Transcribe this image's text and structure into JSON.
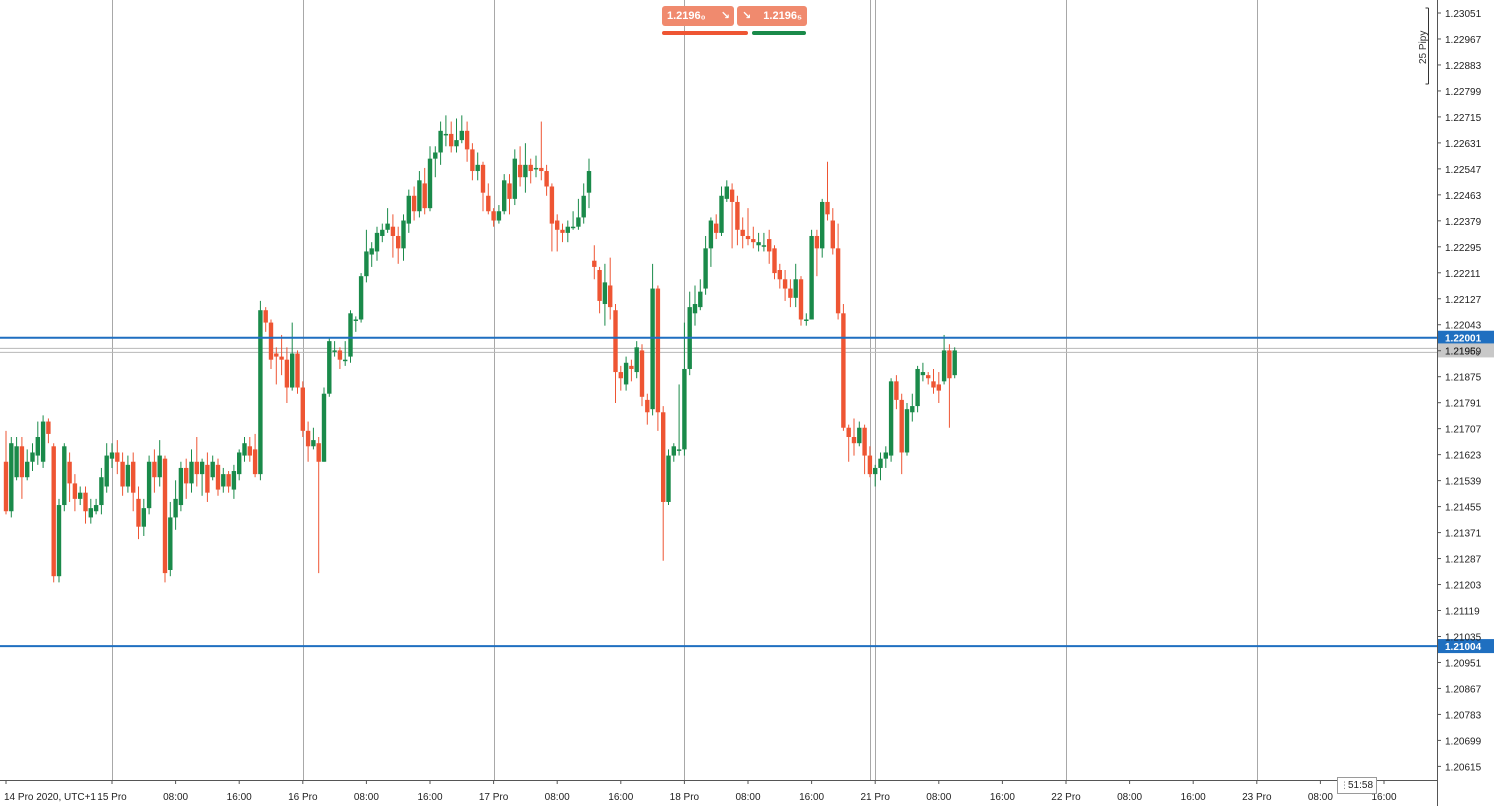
{
  "trade_panel": {
    "sell_price": "1.2196₀",
    "buy_price": "1.2196₅",
    "sell_arrow": "↘",
    "buy_arrow": "↘",
    "sell_color": "#ee5533",
    "buy_color": "#1a8a4a"
  },
  "timer": {
    "text": "51:58"
  },
  "scale_ruler": {
    "label": "25 Pipy"
  },
  "colors": {
    "bull": "#1a8a4a",
    "bear": "#ee5533",
    "hline": "#1f6fc0",
    "grid": "#a8a8a8"
  },
  "chart_data": {
    "type": "candlestick",
    "y_range": [
      1.20571,
      1.23093
    ],
    "y_ticks": [
      "1.23051",
      "1.22967",
      "1.22883",
      "1.22799",
      "1.22715",
      "1.22631",
      "1.22547",
      "1.22463",
      "1.22379",
      "1.22295",
      "1.22211",
      "1.22127",
      "1.22043",
      "1.21959",
      "1.21875",
      "1.21791",
      "1.21707",
      "1.21623",
      "1.21539",
      "1.21455",
      "1.21371",
      "1.21287",
      "1.21203",
      "1.21119",
      "1.21035",
      "1.20951",
      "1.20867",
      "1.20783",
      "1.20699",
      "1.20615"
    ],
    "x_labels": [
      {
        "label": "14 Pro 2020, UTC+1",
        "t": 0
      },
      {
        "label": "15 Pro",
        "t": 20
      },
      {
        "label": "08:00",
        "t": 32
      },
      {
        "label": "16:00",
        "t": 44
      },
      {
        "label": "16 Pro",
        "t": 56
      },
      {
        "label": "08:00",
        "t": 68
      },
      {
        "label": "16:00",
        "t": 80
      },
      {
        "label": "17 Pro",
        "t": 92
      },
      {
        "label": "08:00",
        "t": 104
      },
      {
        "label": "16:00",
        "t": 116
      },
      {
        "label": "18 Pro",
        "t": 128
      },
      {
        "label": "08:00",
        "t": 140
      },
      {
        "label": "16:00",
        "t": 152
      },
      {
        "label": "21 Pro",
        "t": 164
      },
      {
        "label": "08:00",
        "t": 176
      },
      {
        "label": "16:00",
        "t": 188
      },
      {
        "label": "22 Pro",
        "t": 200
      },
      {
        "label": "08:00",
        "t": 212
      },
      {
        "label": "16:00",
        "t": 224
      },
      {
        "label": "23 Pro",
        "t": 236
      },
      {
        "label": "08:00",
        "t": 248
      },
      {
        "label": "16:00",
        "t": 260
      }
    ],
    "separators": [
      20,
      56,
      92,
      128,
      163,
      164,
      200,
      236
    ],
    "horizontal_lines": [
      {
        "price": 1.22001,
        "label": "1.22001"
      },
      {
        "price": 1.21004,
        "label": "1.21004"
      }
    ],
    "current_price": {
      "price": 1.2196,
      "label": "1.2196₀"
    },
    "candles": [
      [
        1.216,
        1.2144,
        1.217,
        1.2143
      ],
      [
        1.2144,
        1.2166,
        1.2168,
        1.2142
      ],
      [
        1.2155,
        1.2165,
        1.2168,
        1.2154
      ],
      [
        1.2165,
        1.2155,
        1.2168,
        1.2148
      ],
      [
        1.2155,
        1.216,
        1.2164,
        1.2154
      ],
      [
        1.216,
        1.2163,
        1.2166,
        1.2157
      ],
      [
        1.2162,
        1.2168,
        1.2173,
        1.2159
      ],
      [
        1.216,
        1.2173,
        1.2175,
        1.2158
      ],
      [
        1.2173,
        1.2169,
        1.2174,
        1.2166
      ],
      [
        1.2165,
        1.2123,
        1.2166,
        1.2121
      ],
      [
        1.2123,
        1.2146,
        1.2148,
        1.2121
      ],
      [
        1.2146,
        1.2165,
        1.2166,
        1.2144
      ],
      [
        1.216,
        1.2153,
        1.2163,
        1.2147
      ],
      [
        1.2153,
        1.2148,
        1.2156,
        1.2144
      ],
      [
        1.2148,
        1.215,
        1.2152,
        1.2146
      ],
      [
        1.215,
        1.2144,
        1.2152,
        1.214
      ],
      [
        1.2142,
        1.2145,
        1.2148,
        1.214
      ],
      [
        1.2144,
        1.2146,
        1.2148,
        1.2143
      ],
      [
        1.2146,
        1.2155,
        1.2158,
        1.2143
      ],
      [
        1.2152,
        1.2162,
        1.2166,
        1.215
      ],
      [
        1.2161,
        1.2163,
        1.2166,
        1.2158
      ],
      [
        1.2163,
        1.216,
        1.2167,
        1.2156
      ],
      [
        1.216,
        1.2152,
        1.2163,
        1.2149
      ],
      [
        1.2152,
        1.2159,
        1.2162,
        1.215
      ],
      [
        1.216,
        1.215,
        1.2163,
        1.2144
      ],
      [
        1.2148,
        1.2139,
        1.2152,
        1.2135
      ],
      [
        1.2139,
        1.2145,
        1.2148,
        1.2136
      ],
      [
        1.2145,
        1.216,
        1.2162,
        1.2143
      ],
      [
        1.216,
        1.2155,
        1.2164,
        1.215
      ],
      [
        1.2155,
        1.2162,
        1.2167,
        1.2152
      ],
      [
        1.2161,
        1.2124,
        1.2162,
        1.2121
      ],
      [
        1.2125,
        1.2142,
        1.2147,
        1.2123
      ],
      [
        1.2142,
        1.2148,
        1.2154,
        1.2138
      ],
      [
        1.2146,
        1.2158,
        1.216,
        1.2144
      ],
      [
        1.2158,
        1.2153,
        1.2161,
        1.2148
      ],
      [
        1.2153,
        1.216,
        1.2164,
        1.215
      ],
      [
        1.216,
        1.2156,
        1.2168,
        1.2152
      ],
      [
        1.2156,
        1.216,
        1.2161,
        1.2149
      ],
      [
        1.2159,
        1.215,
        1.2163,
        1.2147
      ],
      [
        1.2155,
        1.216,
        1.2162,
        1.2154
      ],
      [
        1.2159,
        1.2151,
        1.2161,
        1.2149
      ],
      [
        1.2152,
        1.2156,
        1.2158,
        1.215
      ],
      [
        1.2156,
        1.2152,
        1.2157,
        1.215
      ],
      [
        1.2151,
        1.2157,
        1.2159,
        1.2148
      ],
      [
        1.2156,
        1.2163,
        1.2164,
        1.2154
      ],
      [
        1.2162,
        1.2166,
        1.2168,
        1.216
      ],
      [
        1.2165,
        1.2162,
        1.2168,
        1.216
      ],
      [
        1.2164,
        1.2156,
        1.2169,
        1.2155
      ],
      [
        1.2156,
        1.2209,
        1.2212,
        1.2154
      ],
      [
        1.2209,
        1.2205,
        1.221,
        1.2202
      ],
      [
        1.2205,
        1.2193,
        1.2206,
        1.219
      ],
      [
        1.2195,
        1.2194,
        1.2197,
        1.2185
      ],
      [
        1.2194,
        1.2193,
        1.2201,
        1.2188
      ],
      [
        1.2193,
        1.2184,
        1.2197,
        1.2179
      ],
      [
        1.2184,
        1.2195,
        1.2205,
        1.2183
      ],
      [
        1.2195,
        1.2184,
        1.2196,
        1.2182
      ],
      [
        1.2184,
        1.217,
        1.2186,
        1.2168
      ],
      [
        1.217,
        1.2165,
        1.2173,
        1.216
      ],
      [
        1.2165,
        1.2167,
        1.2171,
        1.2164
      ],
      [
        1.2166,
        1.216,
        1.2168,
        1.2124
      ],
      [
        1.216,
        1.2182,
        1.2184,
        1.216
      ],
      [
        1.2182,
        1.2199,
        1.22,
        1.2181
      ],
      [
        1.2196,
        1.2196,
        1.2199,
        1.2194
      ],
      [
        1.2196,
        1.2193,
        1.2197,
        1.219
      ],
      [
        1.2193,
        1.2193,
        1.2199,
        1.2191
      ],
      [
        1.2194,
        1.2208,
        1.2209,
        1.2192
      ],
      [
        1.2206,
        1.2206,
        1.2207,
        1.2202
      ],
      [
        1.2206,
        1.222,
        1.2221,
        1.2205
      ],
      [
        1.222,
        1.2228,
        1.2235,
        1.2218
      ],
      [
        1.2227,
        1.2229,
        1.2231,
        1.2223
      ],
      [
        1.2228,
        1.2234,
        1.2236,
        1.2225
      ],
      [
        1.2233,
        1.2235,
        1.2237,
        1.2231
      ],
      [
        1.2235,
        1.2237,
        1.2242,
        1.2234
      ],
      [
        1.2236,
        1.2233,
        1.224,
        1.2226
      ],
      [
        1.2233,
        1.2229,
        1.2236,
        1.2224
      ],
      [
        1.2229,
        1.2238,
        1.224,
        1.2225
      ],
      [
        1.2237,
        1.2246,
        1.2248,
        1.2234
      ],
      [
        1.2246,
        1.2241,
        1.2249,
        1.2238
      ],
      [
        1.2241,
        1.2251,
        1.2254,
        1.2239
      ],
      [
        1.225,
        1.2242,
        1.2255,
        1.224
      ],
      [
        1.2242,
        1.2258,
        1.2262,
        1.2241
      ],
      [
        1.2258,
        1.226,
        1.2262,
        1.2252
      ],
      [
        1.226,
        1.2267,
        1.227,
        1.2256
      ],
      [
        1.2266,
        1.2266,
        1.2272,
        1.2262
      ],
      [
        1.2266,
        1.2262,
        1.227,
        1.226
      ],
      [
        1.2262,
        1.2264,
        1.2271,
        1.226
      ],
      [
        1.2264,
        1.2267,
        1.2272,
        1.2263
      ],
      [
        1.2267,
        1.2261,
        1.227,
        1.2257
      ],
      [
        1.2261,
        1.2254,
        1.2263,
        1.2251
      ],
      [
        1.2254,
        1.2256,
        1.226,
        1.2251
      ],
      [
        1.2256,
        1.2247,
        1.2257,
        1.2241
      ],
      [
        1.2246,
        1.2241,
        1.225,
        1.224
      ],
      [
        1.2241,
        1.2238,
        1.2242,
        1.2236
      ],
      [
        1.2238,
        1.2241,
        1.2243,
        1.2237
      ],
      [
        1.2241,
        1.2251,
        1.2253,
        1.224
      ],
      [
        1.225,
        1.2245,
        1.2253,
        1.224
      ],
      [
        1.2245,
        1.2258,
        1.2261,
        1.2243
      ],
      [
        1.2256,
        1.2252,
        1.2262,
        1.2249
      ],
      [
        1.2252,
        1.2256,
        1.2263,
        1.2247
      ],
      [
        1.2256,
        1.2254,
        1.2258,
        1.225
      ],
      [
        1.2255,
        1.2255,
        1.2259,
        1.2252
      ],
      [
        1.2255,
        1.2254,
        1.227,
        1.2251
      ],
      [
        1.2254,
        1.2249,
        1.2256,
        1.2246
      ],
      [
        1.2249,
        1.2237,
        1.225,
        1.2228
      ],
      [
        1.2238,
        1.2235,
        1.224,
        1.2228
      ],
      [
        1.2235,
        1.2234,
        1.2237,
        1.2231
      ],
      [
        1.2234,
        1.2236,
        1.2238,
        1.2231
      ],
      [
        1.2236,
        1.2236,
        1.2241,
        1.2235
      ],
      [
        1.2236,
        1.2239,
        1.2245,
        1.2235
      ],
      [
        1.2239,
        1.2246,
        1.225,
        1.2237
      ],
      [
        1.2247,
        1.2254,
        1.2258,
        1.2242
      ],
      [
        1.2225,
        1.2223,
        1.223,
        1.2219
      ],
      [
        1.2222,
        1.2212,
        1.2223,
        1.2208
      ],
      [
        1.2211,
        1.2218,
        1.2224,
        1.2204
      ],
      [
        1.2217,
        1.221,
        1.2226,
        1.2206
      ],
      [
        1.2209,
        1.2189,
        1.2211,
        1.2179
      ],
      [
        1.2189,
        1.2187,
        1.2191,
        1.2183
      ],
      [
        1.2185,
        1.2192,
        1.2194,
        1.2183
      ],
      [
        1.2191,
        1.219,
        1.2193,
        1.2186
      ],
      [
        1.2189,
        1.2197,
        1.2199,
        1.2187
      ],
      [
        1.2196,
        1.2181,
        1.2198,
        1.2178
      ],
      [
        1.218,
        1.2176,
        1.2182,
        1.2172
      ],
      [
        1.2177,
        1.2216,
        1.2224,
        1.2175
      ],
      [
        1.2216,
        1.2176,
        1.2217,
        1.217
      ],
      [
        1.2176,
        1.2147,
        1.2178,
        1.2128
      ],
      [
        1.2147,
        1.2162,
        1.2164,
        1.2146
      ],
      [
        1.2162,
        1.2165,
        1.2166,
        1.216
      ],
      [
        1.2164,
        1.2164,
        1.2185,
        1.2162
      ],
      [
        1.2164,
        1.219,
        1.2205,
        1.2162
      ],
      [
        1.219,
        1.221,
        1.2215,
        1.2188
      ],
      [
        1.2208,
        1.2211,
        1.2217,
        1.2204
      ],
      [
        1.221,
        1.2215,
        1.2219,
        1.2209
      ],
      [
        1.2216,
        1.2229,
        1.2233,
        1.2214
      ],
      [
        1.2229,
        1.2238,
        1.2239,
        1.2223
      ],
      [
        1.2237,
        1.2234,
        1.224,
        1.2232
      ],
      [
        1.2234,
        1.2246,
        1.2249,
        1.2233
      ],
      [
        1.2245,
        1.2249,
        1.2251,
        1.2244
      ],
      [
        1.2248,
        1.2244,
        1.225,
        1.2229
      ],
      [
        1.2244,
        1.2235,
        1.2246,
        1.223
      ],
      [
        1.2235,
        1.2233,
        1.2239,
        1.2229
      ],
      [
        1.2233,
        1.2232,
        1.2242,
        1.223
      ],
      [
        1.2232,
        1.2231,
        1.2236,
        1.2229
      ],
      [
        1.223,
        1.2231,
        1.2234,
        1.2228
      ],
      [
        1.223,
        1.223,
        1.2234,
        1.2228
      ],
      [
        1.2232,
        1.2228,
        1.2235,
        1.2224
      ],
      [
        1.2229,
        1.2221,
        1.223,
        1.2219
      ],
      [
        1.2222,
        1.2219,
        1.2224,
        1.2216
      ],
      [
        1.2219,
        1.2216,
        1.2222,
        1.2212
      ],
      [
        1.2216,
        1.2213,
        1.2219,
        1.221
      ],
      [
        1.2213,
        1.2219,
        1.2224,
        1.221
      ],
      [
        1.2219,
        1.2206,
        1.222,
        1.2204
      ],
      [
        1.2206,
        1.2206,
        1.2208,
        1.2204
      ],
      [
        1.2206,
        1.2233,
        1.2235,
        1.2206
      ],
      [
        1.2233,
        1.2229,
        1.2235,
        1.222
      ],
      [
        1.2229,
        1.2244,
        1.2245,
        1.2226
      ],
      [
        1.2244,
        1.224,
        1.2257,
        1.2238
      ],
      [
        1.2238,
        1.2229,
        1.2242,
        1.2227
      ],
      [
        1.2229,
        1.2208,
        1.2237,
        1.2206
      ],
      [
        1.2208,
        1.2171,
        1.2211,
        1.217
      ],
      [
        1.2171,
        1.2168,
        1.2172,
        1.216
      ],
      [
        1.2168,
        1.2166,
        1.2174,
        1.2162
      ],
      [
        1.2166,
        1.2171,
        1.2173,
        1.2165
      ],
      [
        1.2171,
        1.2162,
        1.2172,
        1.2156
      ],
      [
        1.2162,
        1.2156,
        1.2165,
        1.2155
      ],
      [
        1.2156,
        1.2158,
        1.2159,
        1.2152
      ],
      [
        1.2158,
        1.2161,
        1.2163,
        1.2154
      ],
      [
        1.2161,
        1.2163,
        1.2165,
        1.2158
      ],
      [
        1.2162,
        1.2186,
        1.2187,
        1.216
      ],
      [
        1.2186,
        1.218,
        1.2188,
        1.2177
      ],
      [
        1.218,
        1.2163,
        1.2182,
        1.2156
      ],
      [
        1.2163,
        1.2177,
        1.2179,
        1.2162
      ],
      [
        1.2176,
        1.2178,
        1.2182,
        1.2173
      ],
      [
        1.2178,
        1.219,
        1.2191,
        1.2176
      ],
      [
        1.2188,
        1.2189,
        1.2192,
        1.2186
      ],
      [
        1.2188,
        1.2187,
        1.2189,
        1.2185
      ],
      [
        1.2186,
        1.2184,
        1.219,
        1.2182
      ],
      [
        1.2185,
        1.2183,
        1.2189,
        1.2179
      ],
      [
        1.2186,
        1.2196,
        1.2201,
        1.2185
      ],
      [
        1.2196,
        1.2187,
        1.2198,
        1.2171
      ],
      [
        1.2188,
        1.2196,
        1.2197,
        1.2187
      ]
    ]
  }
}
